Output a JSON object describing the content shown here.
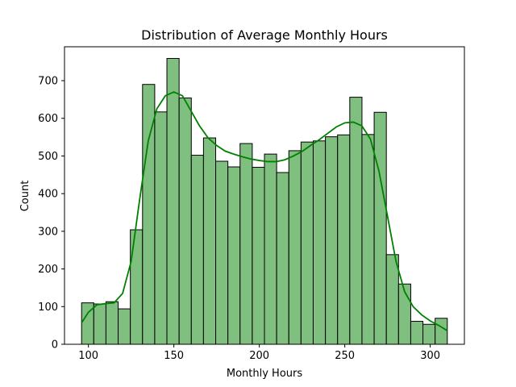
{
  "chart_data": {
    "type": "bar",
    "title": "Distribution of Average Monthly Hours",
    "xlabel": "Monthly Hours",
    "ylabel": "Count",
    "xlim": [
      86,
      320
    ],
    "ylim": [
      0,
      790
    ],
    "xticks": [
      100,
      150,
      200,
      250,
      300
    ],
    "yticks": [
      0,
      100,
      200,
      300,
      400,
      500,
      600,
      700
    ],
    "grid": false,
    "bar_color": "#7fbf7f",
    "edge_color": "#000000",
    "kde_color": "#008000",
    "bins": [
      {
        "x0": 96.0,
        "x1": 103.13,
        "count": 110
      },
      {
        "x0": 103.13,
        "x1": 110.27,
        "count": 107
      },
      {
        "x0": 110.27,
        "x1": 117.4,
        "count": 113
      },
      {
        "x0": 117.4,
        "x1": 124.53,
        "count": 94
      },
      {
        "x0": 124.53,
        "x1": 131.67,
        "count": 304
      },
      {
        "x0": 131.67,
        "x1": 138.8,
        "count": 690
      },
      {
        "x0": 138.8,
        "x1": 145.93,
        "count": 617
      },
      {
        "x0": 145.93,
        "x1": 153.07,
        "count": 759
      },
      {
        "x0": 153.07,
        "x1": 160.2,
        "count": 654
      },
      {
        "x0": 160.2,
        "x1": 167.33,
        "count": 502
      },
      {
        "x0": 167.33,
        "x1": 174.47,
        "count": 548
      },
      {
        "x0": 174.47,
        "x1": 181.6,
        "count": 486
      },
      {
        "x0": 181.6,
        "x1": 188.73,
        "count": 471
      },
      {
        "x0": 188.73,
        "x1": 195.87,
        "count": 533
      },
      {
        "x0": 195.87,
        "x1": 203.0,
        "count": 470
      },
      {
        "x0": 203.0,
        "x1": 210.13,
        "count": 505
      },
      {
        "x0": 210.13,
        "x1": 217.27,
        "count": 456
      },
      {
        "x0": 217.27,
        "x1": 224.4,
        "count": 514
      },
      {
        "x0": 224.4,
        "x1": 231.53,
        "count": 537
      },
      {
        "x0": 231.53,
        "x1": 238.67,
        "count": 540
      },
      {
        "x0": 238.67,
        "x1": 245.8,
        "count": 551
      },
      {
        "x0": 245.8,
        "x1": 252.93,
        "count": 556
      },
      {
        "x0": 252.93,
        "x1": 260.07,
        "count": 656
      },
      {
        "x0": 260.07,
        "x1": 267.2,
        "count": 557
      },
      {
        "x0": 267.2,
        "x1": 274.33,
        "count": 616
      },
      {
        "x0": 274.33,
        "x1": 281.47,
        "count": 238
      },
      {
        "x0": 281.47,
        "x1": 288.6,
        "count": 160
      },
      {
        "x0": 288.6,
        "x1": 295.73,
        "count": 61
      },
      {
        "x0": 295.73,
        "x1": 302.87,
        "count": 53
      },
      {
        "x0": 302.87,
        "x1": 310.0,
        "count": 69
      }
    ],
    "kde": {
      "x": [
        96,
        100,
        105,
        110,
        115,
        120,
        125,
        130,
        135,
        140,
        145,
        150,
        155,
        160,
        165,
        170,
        175,
        180,
        185,
        190,
        195,
        200,
        205,
        210,
        215,
        220,
        225,
        230,
        235,
        240,
        245,
        250,
        255,
        260,
        265,
        270,
        275,
        280,
        285,
        290,
        295,
        300,
        305,
        310
      ],
      "y": [
        57,
        85,
        105,
        108,
        110,
        135,
        220,
        385,
        540,
        625,
        660,
        670,
        660,
        620,
        580,
        548,
        528,
        513,
        505,
        498,
        492,
        488,
        485,
        485,
        490,
        500,
        512,
        528,
        543,
        560,
        577,
        588,
        590,
        580,
        545,
        460,
        340,
        220,
        140,
        100,
        78,
        62,
        50,
        36
      ]
    }
  }
}
